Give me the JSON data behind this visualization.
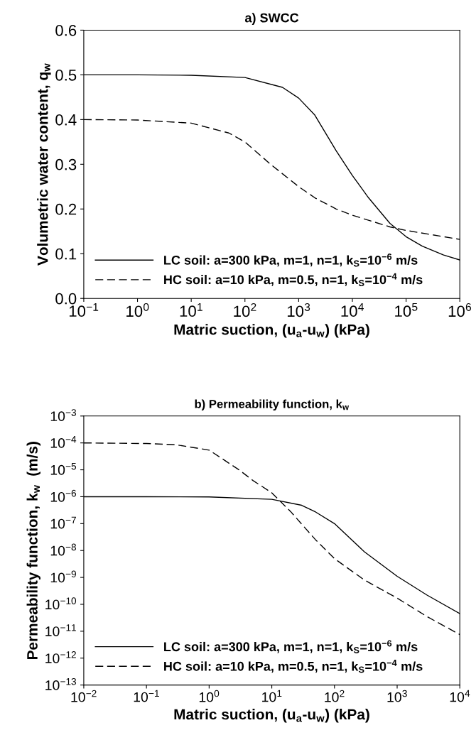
{
  "chart_data": [
    {
      "type": "line",
      "title": "a) SWCC",
      "xlabel": "Matric suction, (u$_{a}$-u$_{w}$) (kPa)",
      "ylabel": "Volumetric water content, q$_{w}$",
      "log": "x",
      "xlim": [
        0.1,
        1000000
      ],
      "xticks": [
        {
          "value": 0.1,
          "label": "10$^{−1}$"
        },
        {
          "value": 1,
          "label": "10$^{0}$"
        },
        {
          "value": 10,
          "label": "10$^{1}$"
        },
        {
          "value": 100,
          "label": "10$^{2}$"
        },
        {
          "value": 1000,
          "label": "10$^{3}$"
        },
        {
          "value": 10000,
          "label": "10$^{4}$"
        },
        {
          "value": 100000,
          "label": "10$^{5}$"
        },
        {
          "value": 1000000,
          "label": "10$^{6}$"
        }
      ],
      "ylim": [
        0,
        0.6
      ],
      "yticks": [
        {
          "value": 0,
          "label": "0.0"
        },
        0.1,
        0.2,
        0.3,
        0.4,
        0.5,
        0.6
      ],
      "grid": false,
      "legend": "bottom left",
      "marker": "none",
      "series": [
        {
          "name": "LC soil: a=300 kPa, m=1, n=1, k$_{S}$=10$^{−6}$ m/s",
          "color": "#000000",
          "line_style": "solid",
          "x": [
            0.1,
            1,
            10,
            100,
            500,
            1000,
            2000,
            5000,
            10000,
            20000,
            50000,
            100000,
            200000,
            500000,
            1000000
          ],
          "values": [
            0.5,
            0.5,
            0.499,
            0.494,
            0.472,
            0.448,
            0.41,
            0.33,
            0.275,
            0.225,
            0.168,
            0.138,
            0.117,
            0.097,
            0.086
          ]
        },
        {
          "name": "HC soil: a=10 kPa, m=0.5, n=1, k$_{S}$=10$^{−4}$ m/s",
          "color": "#000000",
          "line_style": "dashed",
          "x": [
            0.1,
            1,
            10,
            50,
            100,
            300,
            1000,
            2000,
            5000,
            10000,
            50000,
            100000,
            1000000
          ],
          "values": [
            0.4,
            0.399,
            0.392,
            0.37,
            0.35,
            0.3,
            0.25,
            0.225,
            0.2,
            0.186,
            0.16,
            0.152,
            0.132
          ]
        }
      ]
    },
    {
      "type": "line",
      "title": "b) Permeability function, k$_{w}$",
      "xlabel": "Matric suction, (u$_{a}$-u$_{w}$) (kPa)",
      "ylabel": "Permeability function, k$_{w}$  (m/s)",
      "log": "xy",
      "xlim": [
        0.01,
        10000
      ],
      "xticks": [
        {
          "value": 0.01,
          "label": "10$^{−2}$"
        },
        {
          "value": 0.1,
          "label": "10$^{−1}$"
        },
        {
          "value": 1,
          "label": "10$^{0}$"
        },
        {
          "value": 10,
          "label": "10$^{1}$"
        },
        {
          "value": 100,
          "label": "10$^{2}$"
        },
        {
          "value": 1000,
          "label": "10$^{3}$"
        },
        {
          "value": 10000,
          "label": "10$^{4}$"
        }
      ],
      "ylim": [
        1e-13,
        0.001
      ],
      "yticks": [
        {
          "value": 1e-13,
          "label": "10$^{−13}$"
        },
        {
          "value": 1e-12,
          "label": "10$^{−12}$"
        },
        {
          "value": 1e-11,
          "label": "10$^{−11}$"
        },
        {
          "value": 1e-10,
          "label": "10$^{−10}$"
        },
        {
          "value": 1e-09,
          "label": "10$^{−9}$"
        },
        {
          "value": 1e-08,
          "label": "10$^{−8}$"
        },
        {
          "value": 1e-07,
          "label": "10$^{−7}$"
        },
        {
          "value": 1e-06,
          "label": "10$^{−6}$"
        },
        {
          "value": 1e-05,
          "label": "10$^{−5}$"
        },
        {
          "value": 0.0001,
          "label": "10$^{−4}$"
        },
        {
          "value": 0.001,
          "label": "10$^{−3}$"
        }
      ],
      "grid": false,
      "legend": "bottom left",
      "marker": "none",
      "series": [
        {
          "name": "LC soil: a=300 kPa, m=1, n=1, k$_{S}$=10$^{−6}$ m/s",
          "color": "#000000",
          "line_style": "solid",
          "x": [
            0.01,
            0.1,
            1,
            10,
            30,
            50,
            100,
            300,
            1000,
            3000,
            10000
          ],
          "values": [
            1e-06,
            1e-06,
            9.8e-07,
            8e-07,
            4.8e-07,
            2.7e-07,
            1e-07,
            9e-09,
            1.1e-09,
            2.2e-10,
            4.5e-11
          ]
        },
        {
          "name": "HC soil: a=10 kPa, m=0.5, n=1, k$_{S}$=10$^{−4}$ m/s",
          "color": "#000000",
          "line_style": "dashed",
          "x": [
            0.01,
            0.1,
            0.3,
            1,
            3,
            5,
            10,
            20,
            50,
            100,
            300,
            1000,
            3000,
            10000
          ],
          "values": [
            0.0001,
            9.5e-05,
            8.5e-05,
            5.4e-05,
            1e-05,
            4e-06,
            1.4e-06,
            2.8e-07,
            2.5e-08,
            5e-09,
            8e-10,
            1.7e-10,
            3.5e-11,
            7.5e-12
          ]
        }
      ]
    }
  ]
}
